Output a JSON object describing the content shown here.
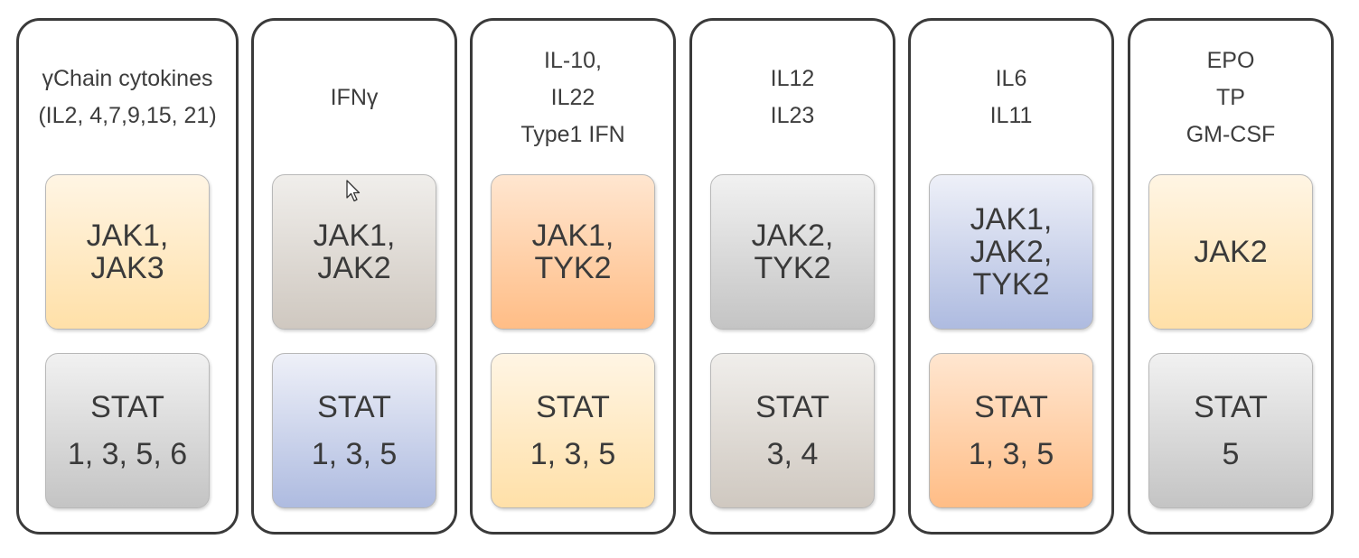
{
  "columns": [
    {
      "header": [
        "γChain cytokines",
        "(IL2, 4,7,9,15, 21)"
      ],
      "jak": [
        "JAK1,",
        "JAK3"
      ],
      "stat": [
        "STAT",
        "1, 3, 5, 6"
      ]
    },
    {
      "header": [
        "IFNγ"
      ],
      "jak": [
        "JAK1,",
        "JAK2"
      ],
      "stat": [
        "STAT",
        "1, 3, 5"
      ]
    },
    {
      "header": [
        "IL-10,",
        "IL22",
        "Type1 IFN"
      ],
      "jak": [
        "JAK1,",
        "TYK2"
      ],
      "stat": [
        "STAT",
        "1, 3, 5"
      ]
    },
    {
      "header": [
        "IL12",
        "IL23"
      ],
      "jak": [
        "JAK2,",
        "TYK2"
      ],
      "stat": [
        "STAT",
        "3, 4"
      ]
    },
    {
      "header": [
        "IL6",
        "IL11"
      ],
      "jak": [
        "JAK1,",
        "JAK2,",
        "TYK2"
      ],
      "stat": [
        "STAT",
        "1, 3, 5"
      ]
    },
    {
      "header": [
        "EPO",
        "TP",
        "GM-CSF"
      ],
      "jak": [
        "JAK2"
      ],
      "stat": [
        "STAT",
        "5"
      ]
    }
  ],
  "colors": {
    "border": "#3a3a3a",
    "yellow": "#ffe0a8",
    "orange": "#ffbd86",
    "gray": "#c4c4c4",
    "taupe": "#cfc8c0",
    "blue": "#aebbe0"
  },
  "icons": {
    "cursor": "mouse-pointer-icon"
  }
}
